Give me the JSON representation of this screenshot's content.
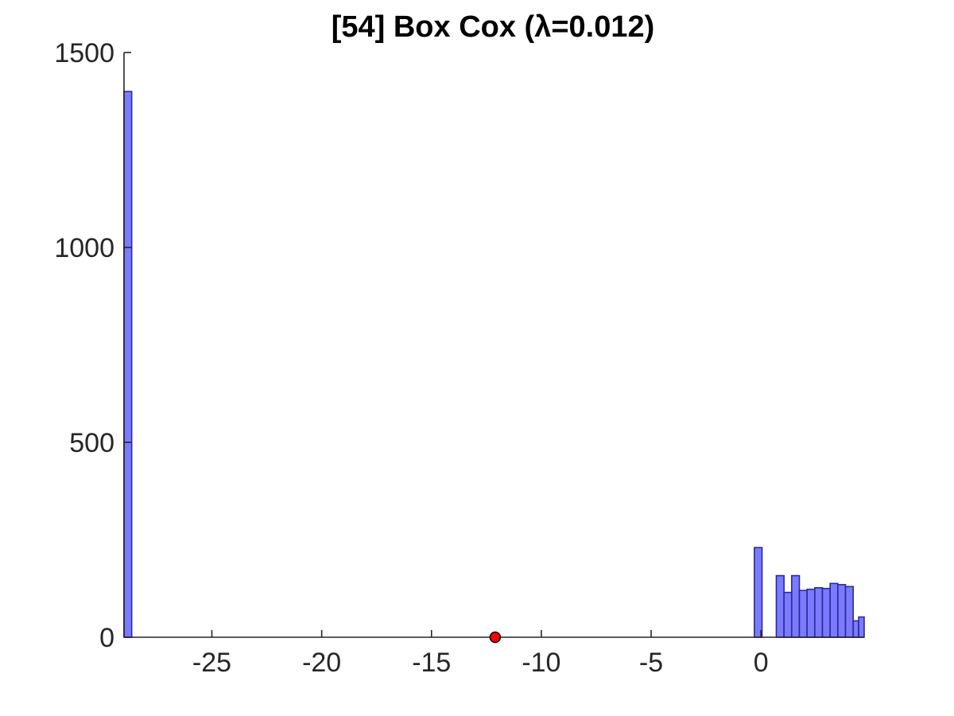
{
  "chart_data": {
    "type": "bar",
    "title": "[54] Box Cox (λ=0.012)",
    "xlabel": "",
    "ylabel": "",
    "xlim": [
      -29,
      4.7
    ],
    "ylim": [
      0,
      1500
    ],
    "x_ticks": [
      -25,
      -20,
      -15,
      -10,
      -5,
      0
    ],
    "x_tick_labels": [
      "-25",
      "-20",
      "-15",
      "-10",
      "-5",
      "0"
    ],
    "y_ticks": [
      0,
      500,
      1000,
      1500
    ],
    "y_tick_labels": [
      "0",
      "500",
      "1000",
      "1500"
    ],
    "grid": false,
    "bar_color": "#7b7bff",
    "bar_edge_color": "#2a2a99",
    "marker_color": "#ff0000",
    "bins": [
      {
        "x0": -29.0,
        "x1": -28.65,
        "count": 1400
      },
      {
        "x0": -0.3,
        "x1": 0.05,
        "count": 230
      },
      {
        "x0": 0.7,
        "x1": 1.05,
        "count": 158
      },
      {
        "x0": 1.05,
        "x1": 1.4,
        "count": 115
      },
      {
        "x0": 1.4,
        "x1": 1.75,
        "count": 158
      },
      {
        "x0": 1.75,
        "x1": 2.1,
        "count": 120
      },
      {
        "x0": 2.1,
        "x1": 2.45,
        "count": 123
      },
      {
        "x0": 2.45,
        "x1": 2.8,
        "count": 127
      },
      {
        "x0": 2.8,
        "x1": 3.15,
        "count": 125
      },
      {
        "x0": 3.15,
        "x1": 3.5,
        "count": 138
      },
      {
        "x0": 3.5,
        "x1": 3.85,
        "count": 135
      },
      {
        "x0": 3.85,
        "x1": 4.2,
        "count": 130
      },
      {
        "x0": 4.2,
        "x1": 4.45,
        "count": 42
      },
      {
        "x0": 4.45,
        "x1": 4.7,
        "count": 52
      }
    ],
    "markers": [
      {
        "x": -12.1,
        "y": 0
      }
    ]
  }
}
